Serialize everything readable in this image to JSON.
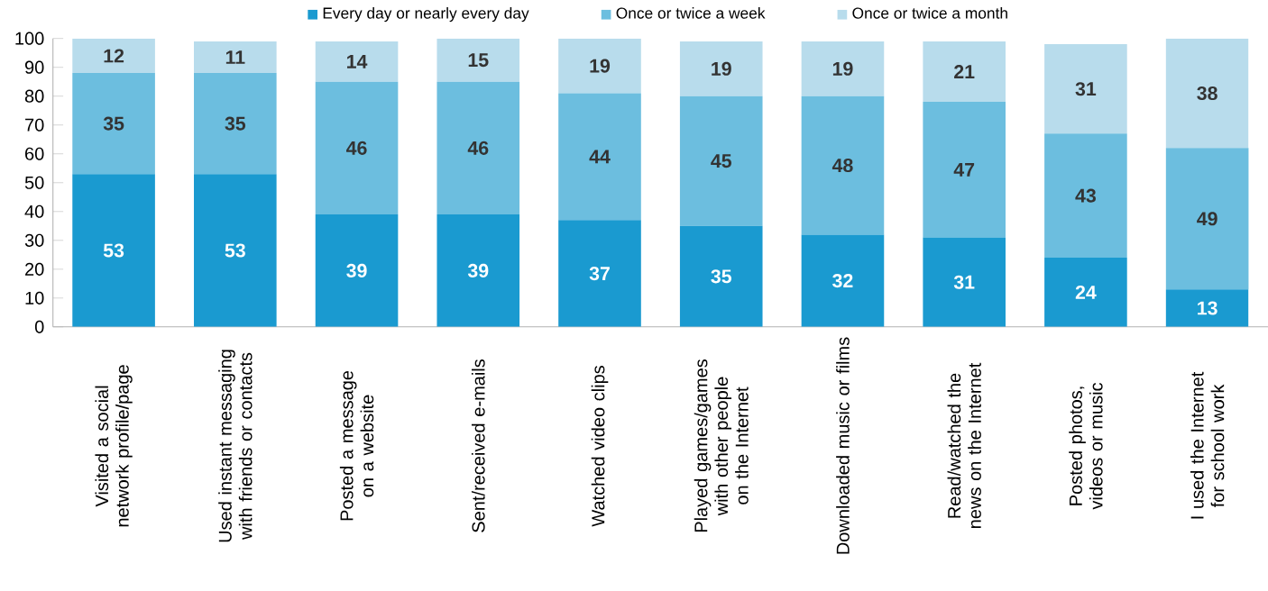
{
  "chart_data": {
    "type": "bar",
    "stacked": true,
    "data_labels": true,
    "legend": "top",
    "categories": [
      "Visited a social network profile/page",
      "Used instant messaging with friends or contacts",
      "Posted a message on a website",
      "Sent/received e-mails",
      "Watched video clips",
      "Played games/games with other people on the Internet",
      "Downloaded music or films",
      "Read/watched the news on the Internet",
      "Posted photos, videos or music",
      "I used the Internet for school work"
    ],
    "series": [
      {
        "name": "Every day or nearly every day",
        "color": "#1a9ad0",
        "values": [
          53,
          53,
          39,
          39,
          37,
          35,
          32,
          31,
          24,
          13
        ]
      },
      {
        "name": "Once or twice a week",
        "color": "#6cbedf",
        "values": [
          35,
          35,
          46,
          46,
          44,
          45,
          48,
          47,
          43,
          49
        ]
      },
      {
        "name": "Once or twice a month",
        "color": "#b8dcec",
        "values": [
          12,
          11,
          14,
          15,
          19,
          19,
          19,
          21,
          31,
          38
        ]
      }
    ],
    "ylim": [
      0,
      100
    ],
    "yticks": [
      0,
      10,
      20,
      30,
      40,
      50,
      60,
      70,
      80,
      90,
      100
    ]
  }
}
